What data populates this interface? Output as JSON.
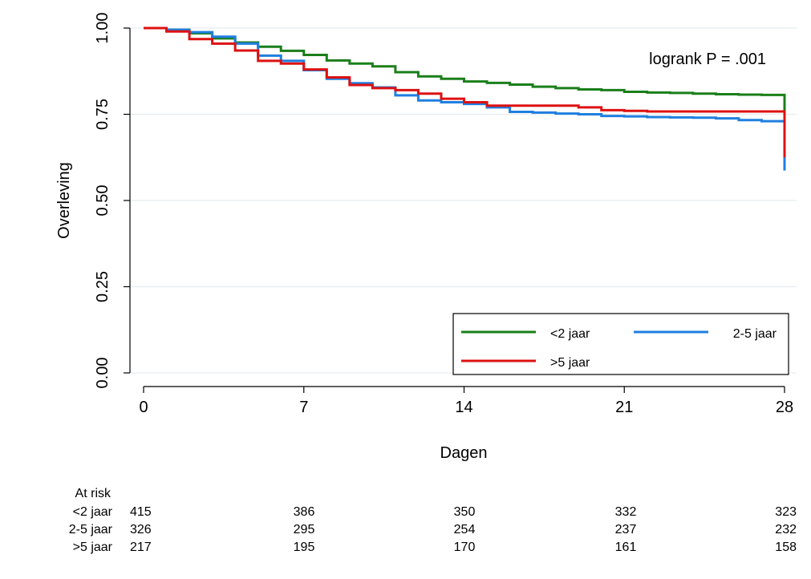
{
  "chart_data": {
    "type": "line",
    "xlabel": "Dagen",
    "ylabel": "Overleving",
    "xlim": [
      0,
      28
    ],
    "ylim": [
      0,
      1
    ],
    "xticks": [
      0,
      7,
      14,
      21,
      28
    ],
    "xtick_labels": [
      "0",
      "7",
      "14",
      "21",
      "28"
    ],
    "yticks": [
      0,
      0.25,
      0.5,
      0.75,
      1
    ],
    "ytick_labels": [
      "0.00",
      "0.25",
      "0.50",
      "0.75",
      "1.00"
    ],
    "grid": "horizontal",
    "annotation": "logrank P = .001",
    "legend": {
      "position": "bottom-right",
      "columns": 2
    },
    "series": [
      {
        "name": "<2 jaar",
        "color": "#1a7f1a",
        "x": [
          0,
          1,
          2,
          3,
          4,
          5,
          6,
          7,
          8,
          9,
          10,
          11,
          12,
          13,
          14,
          15,
          16,
          17,
          18,
          19,
          20,
          21,
          22,
          23,
          24,
          25,
          26,
          27,
          28,
          28
        ],
        "y": [
          1.0,
          0.995,
          0.985,
          0.97,
          0.958,
          0.946,
          0.934,
          0.922,
          0.906,
          0.897,
          0.889,
          0.872,
          0.86,
          0.853,
          0.845,
          0.841,
          0.836,
          0.83,
          0.826,
          0.822,
          0.82,
          0.815,
          0.813,
          0.812,
          0.81,
          0.808,
          0.807,
          0.806,
          0.805,
          0.625
        ]
      },
      {
        "name": "2-5 jaar",
        "color": "#1f7fe0",
        "x": [
          0,
          1,
          2,
          3,
          4,
          5,
          6,
          7,
          8,
          9,
          10,
          11,
          12,
          13,
          14,
          15,
          16,
          17,
          18,
          19,
          20,
          21,
          22,
          23,
          24,
          25,
          26,
          27,
          28,
          28
        ],
        "y": [
          1.0,
          0.995,
          0.988,
          0.975,
          0.955,
          0.92,
          0.905,
          0.878,
          0.853,
          0.84,
          0.828,
          0.805,
          0.79,
          0.785,
          0.78,
          0.77,
          0.757,
          0.755,
          0.752,
          0.75,
          0.745,
          0.744,
          0.742,
          0.741,
          0.74,
          0.738,
          0.733,
          0.73,
          0.728,
          0.587
        ]
      },
      {
        "name": ">5 jaar",
        "color": "#dd1111",
        "x": [
          0,
          1,
          2,
          3,
          4,
          5,
          6,
          7,
          8,
          9,
          10,
          11,
          12,
          13,
          14,
          15,
          16,
          17,
          18,
          19,
          20,
          21,
          22,
          23,
          24,
          25,
          26,
          27,
          28,
          28
        ],
        "y": [
          1.0,
          0.99,
          0.968,
          0.955,
          0.935,
          0.905,
          0.897,
          0.88,
          0.857,
          0.835,
          0.826,
          0.82,
          0.81,
          0.795,
          0.785,
          0.775,
          0.775,
          0.775,
          0.775,
          0.77,
          0.762,
          0.76,
          0.758,
          0.758,
          0.758,
          0.758,
          0.758,
          0.758,
          0.758,
          0.625
        ]
      }
    ],
    "risk_table": {
      "title": "At risk",
      "times": [
        0,
        7,
        14,
        21,
        28
      ],
      "rows": [
        {
          "label": "<2 jaar",
          "values": [
            "415",
            "386",
            "350",
            "332",
            "323"
          ]
        },
        {
          "label": "2-5 jaar",
          "values": [
            "326",
            "295",
            "254",
            "237",
            "232"
          ]
        },
        {
          "label": ">5 jaar",
          "values": [
            "217",
            "195",
            "170",
            "161",
            "158"
          ]
        }
      ]
    }
  }
}
